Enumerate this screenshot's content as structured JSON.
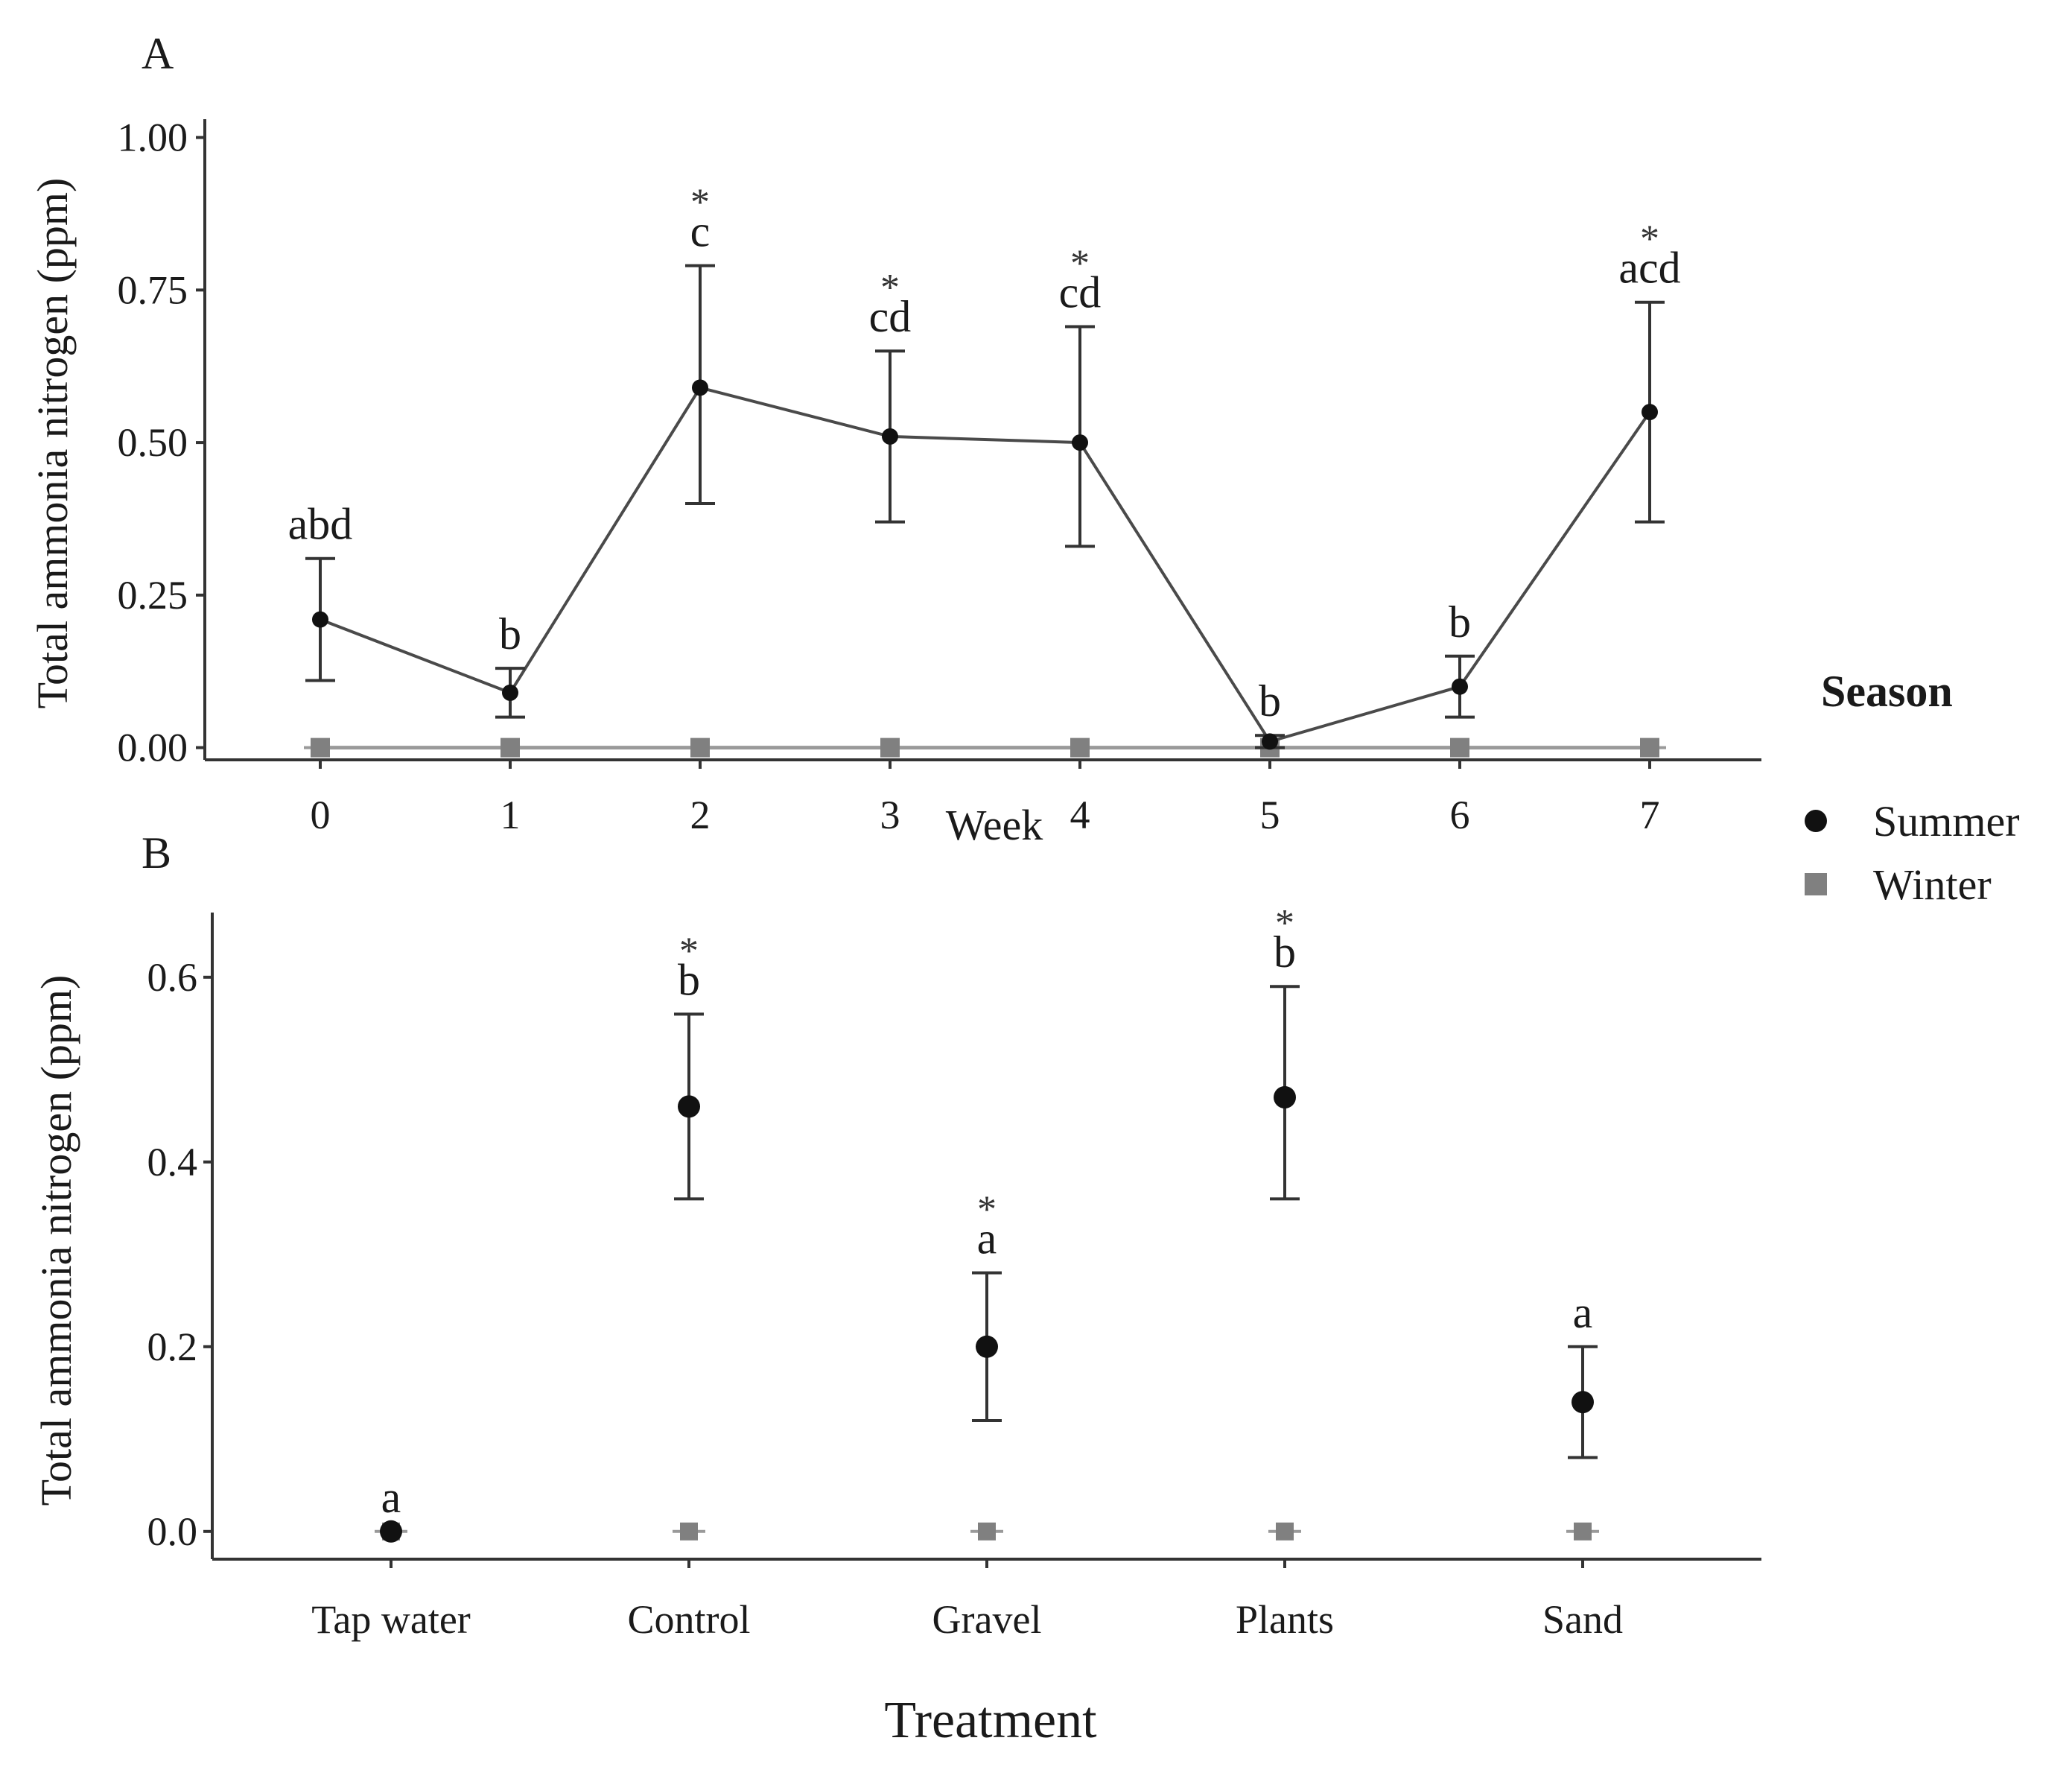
{
  "legend": {
    "title": "Season",
    "entries": [
      {
        "name": "Summer",
        "color": "#111111",
        "marker": "circle"
      },
      {
        "name": "Winter",
        "color": "#808080",
        "marker": "square"
      }
    ]
  },
  "chart_data": [
    {
      "panel": "A",
      "type": "line",
      "xlabel": "Week",
      "ylabel": "Total ammonia nitrogen (ppm)",
      "categories": [
        "0",
        "1",
        "2",
        "3",
        "4",
        "5",
        "6",
        "7"
      ],
      "x": [
        0,
        1,
        2,
        3,
        4,
        5,
        6,
        7
      ],
      "ylim": [
        -0.02,
        1.03
      ],
      "yticks": [
        0.0,
        0.25,
        0.5,
        0.75,
        1.0
      ],
      "ytick_labels": [
        "0.00",
        "0.25",
        "0.50",
        "0.75",
        "1.00"
      ],
      "series": [
        {
          "name": "Summer",
          "color": "#111111",
          "values": [
            0.21,
            0.09,
            0.59,
            0.51,
            0.5,
            0.01,
            0.1,
            0.55
          ],
          "err_low": [
            0.11,
            0.05,
            0.4,
            0.37,
            0.33,
            0.0,
            0.05,
            0.37
          ],
          "err_high": [
            0.31,
            0.13,
            0.79,
            0.65,
            0.69,
            0.02,
            0.15,
            0.73
          ]
        },
        {
          "name": "Winter",
          "color": "#808080",
          "values": [
            0,
            0,
            0,
            0,
            0,
            0,
            0,
            0
          ]
        }
      ],
      "annotations": {
        "letters": [
          "abd",
          "b",
          "c",
          "cd",
          "cd",
          "b",
          "b",
          "acd"
        ],
        "stars": [
          "",
          "",
          "*",
          "*",
          "*",
          "",
          "",
          "*"
        ]
      }
    },
    {
      "panel": "B",
      "type": "scatter",
      "xlabel": "Treatment",
      "ylabel": "Total ammonia nitrogen (ppm)",
      "categories": [
        "Tap water",
        "Control",
        "Gravel",
        "Plants",
        "Sand"
      ],
      "ylim": [
        -0.03,
        0.67
      ],
      "yticks": [
        0.0,
        0.2,
        0.4,
        0.6
      ],
      "ytick_labels": [
        "0.0",
        "0.2",
        "0.4",
        "0.6"
      ],
      "series": [
        {
          "name": "Summer",
          "color": "#111111",
          "values": [
            0.0,
            0.46,
            0.2,
            0.47,
            0.14
          ],
          "err_low": [
            0.0,
            0.36,
            0.12,
            0.36,
            0.08
          ],
          "err_high": [
            0.0,
            0.56,
            0.28,
            0.59,
            0.2
          ]
        },
        {
          "name": "Winter",
          "color": "#808080",
          "values": [
            0,
            0,
            0,
            0,
            0
          ]
        }
      ],
      "annotations": {
        "letters": [
          "a",
          "b",
          "a",
          "b",
          "a"
        ],
        "stars": [
          "",
          "*",
          "*",
          "*",
          ""
        ]
      }
    }
  ]
}
